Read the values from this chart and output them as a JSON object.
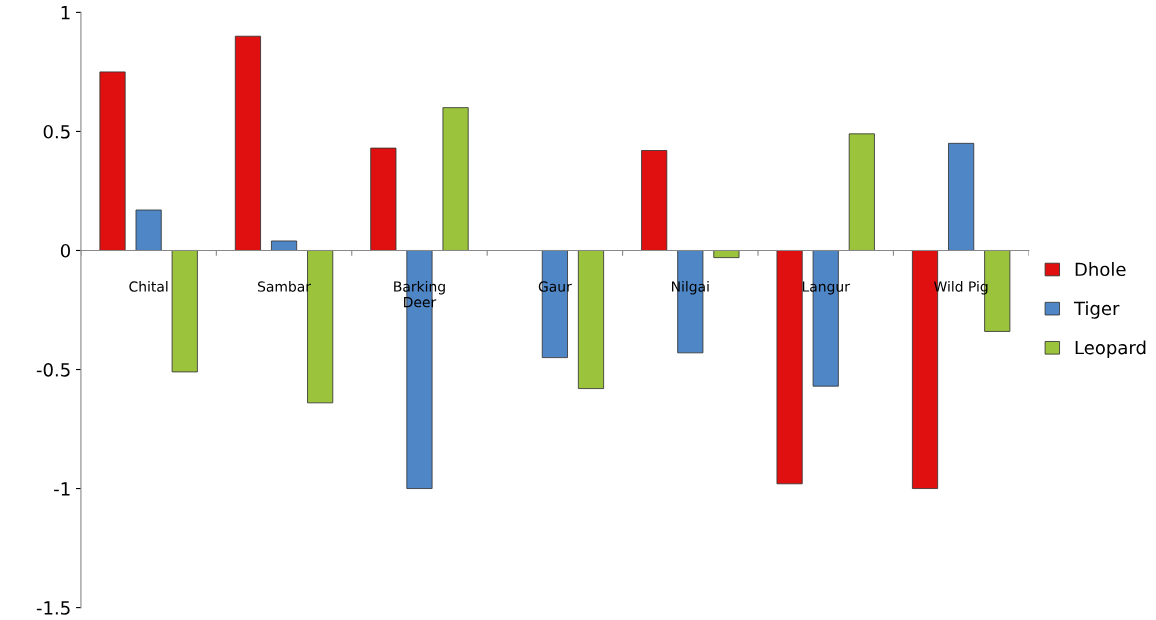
{
  "chart_data": {
    "type": "bar",
    "categories": [
      "Chital",
      "Sambar",
      "Barking\nDeer",
      "Gaur",
      "Nilgai",
      "Langur",
      "Wild Pig"
    ],
    "series": [
      {
        "name": "Dhole",
        "color": "#e01010",
        "values": [
          0.75,
          0.9,
          0.43,
          null,
          0.42,
          -0.98,
          -1
        ]
      },
      {
        "name": "Tiger",
        "color": "#4f86c6",
        "values": [
          0.17,
          0.04,
          -1,
          -0.45,
          -0.43,
          -0.57,
          0.45
        ]
      },
      {
        "name": "Leopard",
        "color": "#9bc43c",
        "values": [
          -0.51,
          -0.64,
          0.6,
          -0.58,
          -0.03,
          0.49,
          -0.34
        ]
      }
    ],
    "ylim": [
      -1.5,
      1
    ],
    "yticks": [
      -1.5,
      -1,
      -0.5,
      0,
      0.5,
      1
    ],
    "grid": false,
    "legend": "right"
  }
}
